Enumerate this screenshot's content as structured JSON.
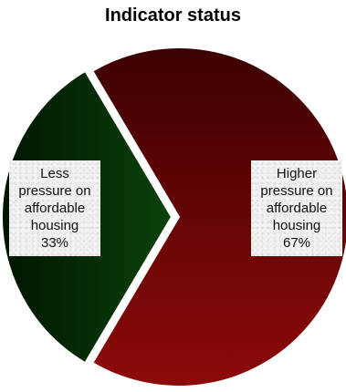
{
  "chart_data": {
    "type": "pie",
    "title": "Indicator status",
    "slices": [
      {
        "label_lines": [
          "Less",
          "pressure on",
          "affordable",
          "housing"
        ],
        "value": 33,
        "value_label": "33%",
        "color": "#073a07"
      },
      {
        "label_lines": [
          "Higher",
          "pressure on",
          "affordable",
          "housing"
        ],
        "value": 67,
        "value_label": "67%",
        "color": "#7d0b0b"
      }
    ]
  },
  "colors": {
    "slice_0_dark": "#001500",
    "slice_0_light": "#0a420a",
    "slice_1_dark": "#3c0000",
    "slice_1_light": "#8e0a0a",
    "separator": "#ffffff"
  }
}
